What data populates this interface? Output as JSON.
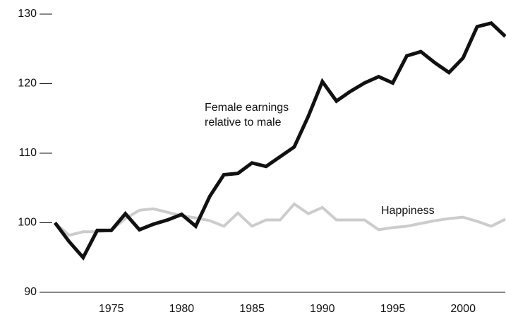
{
  "chart_data": {
    "type": "line",
    "x": [
      1971,
      1972,
      1973,
      1974,
      1975,
      1976,
      1977,
      1978,
      1979,
      1980,
      1981,
      1982,
      1983,
      1984,
      1985,
      1986,
      1987,
      1988,
      1989,
      1990,
      1991,
      1992,
      1993,
      1994,
      1995,
      1996,
      1997,
      1998,
      1999,
      2000,
      2001,
      2002,
      2003
    ],
    "series": [
      {
        "name": "Female earnings relative to male",
        "color": "#111111",
        "values": [
          100,
          97.3,
          95,
          98.9,
          98.9,
          101.3,
          99,
          99.8,
          100.4,
          101.2,
          99.5,
          103.8,
          106.9,
          107.1,
          108.6,
          108.1,
          109.5,
          110.9,
          115.3,
          120.3,
          117.5,
          118.9,
          120.1,
          121,
          120.1,
          124,
          124.6,
          123,
          121.6,
          123.7,
          128.2,
          128.7,
          126.8
        ]
      },
      {
        "name": "Happiness",
        "color": "#cccccc",
        "values": [
          100,
          98.2,
          98.7,
          98.7,
          98.9,
          100.6,
          101.8,
          102,
          101.5,
          101,
          100.7,
          100.3,
          99.5,
          101.4,
          99.5,
          100.4,
          100.4,
          102.7,
          101.3,
          102.2,
          100.4,
          100.4,
          100.4,
          99,
          99.3,
          99.5,
          99.9,
          100.3,
          100.6,
          100.8,
          100.2,
          99.5,
          100.5
        ]
      }
    ],
    "xlim": [
      1970,
      2003
    ],
    "xticks": [
      1975,
      1980,
      1985,
      1990,
      1995,
      2000
    ],
    "ylim": [
      90,
      130
    ],
    "yticks": [
      90,
      100,
      110,
      120,
      130
    ]
  }
}
